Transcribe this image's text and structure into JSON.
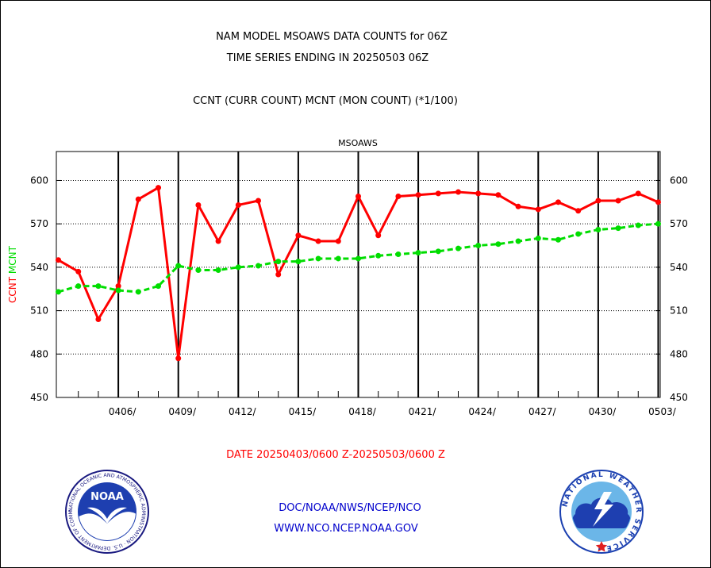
{
  "header": {
    "line1": "NAM MODEL MSOAWS DATA COUNTS for 06Z",
    "line2": "TIME SERIES ENDING IN 20250503 06Z",
    "line3": "CCNT (CURR COUNT) MCNT (MON COUNT) (*1/100)"
  },
  "footer": {
    "date_range": "DATE 20250403/0600 Z-20250503/0600 Z",
    "org_path": "DOC/NOAA/NWS/NCEP/NCO",
    "website": "WWW.NCO.NCEP.NOAA.GOV"
  },
  "logos": {
    "noaa_text": "NOAA",
    "noaa_ring_text": "NATIONAL OCEANIC AND ATMOSPHERIC ADMINISTRATION · U.S. DEPARTMENT OF COMMERCE ·",
    "nws_ring_text": "NATIONAL WEATHER SERVICE ·"
  },
  "colors": {
    "ccnt": "#ff0000",
    "mcnt": "#00dd00",
    "title_blue": "#0000cc",
    "footer_red": "#ff0000"
  },
  "chart_data": {
    "type": "line",
    "title": "MSOAWS",
    "ylabel_left": [
      {
        "text": "CCNT",
        "color": "#ff0000"
      },
      {
        "text": "MCNT",
        "color": "#00dd00"
      }
    ],
    "ylim": [
      450,
      620
    ],
    "yticks": [
      450,
      480,
      510,
      540,
      570,
      600
    ],
    "x": [
      1,
      2,
      3,
      4,
      5,
      6,
      7,
      8,
      9,
      10,
      11,
      12,
      13,
      14,
      15,
      16,
      17,
      18,
      19,
      20,
      21,
      22,
      23,
      24,
      25,
      26,
      27,
      28,
      29,
      30,
      31
    ],
    "xlim": [
      0.9,
      31.1
    ],
    "xticks": [
      {
        "x": 4,
        "label": "0406/"
      },
      {
        "x": 7,
        "label": "0409/"
      },
      {
        "x": 10,
        "label": "0412/"
      },
      {
        "x": 13,
        "label": "0415/"
      },
      {
        "x": 16,
        "label": "0418/"
      },
      {
        "x": 19,
        "label": "0421/"
      },
      {
        "x": 22,
        "label": "0424/"
      },
      {
        "x": 25,
        "label": "0427/"
      },
      {
        "x": 28,
        "label": "0430/"
      },
      {
        "x": 31,
        "label": "0503/"
      }
    ],
    "minor_xticks": [
      2,
      3,
      5,
      6,
      8,
      9,
      11,
      12,
      14,
      15,
      17,
      18,
      20,
      21,
      23,
      24,
      26,
      27,
      29,
      30
    ],
    "grid": true,
    "series": [
      {
        "name": "CCNT",
        "color": "#ff0000",
        "values": [
          545,
          537,
          504,
          527,
          587,
          595,
          477,
          583,
          558,
          583,
          586,
          535,
          562,
          558,
          558,
          589,
          562,
          589,
          590,
          591,
          592,
          591,
          590,
          582,
          580,
          585,
          579,
          586,
          586,
          591,
          585
        ]
      },
      {
        "name": "MCNT",
        "color": "#00dd00",
        "values": [
          523,
          527,
          527,
          524,
          523,
          527,
          541,
          538,
          538,
          540,
          541,
          544,
          544,
          546,
          546,
          546,
          548,
          549,
          550,
          551,
          553,
          555,
          556,
          558,
          560,
          559,
          563,
          566,
          567,
          569,
          570
        ]
      }
    ]
  }
}
